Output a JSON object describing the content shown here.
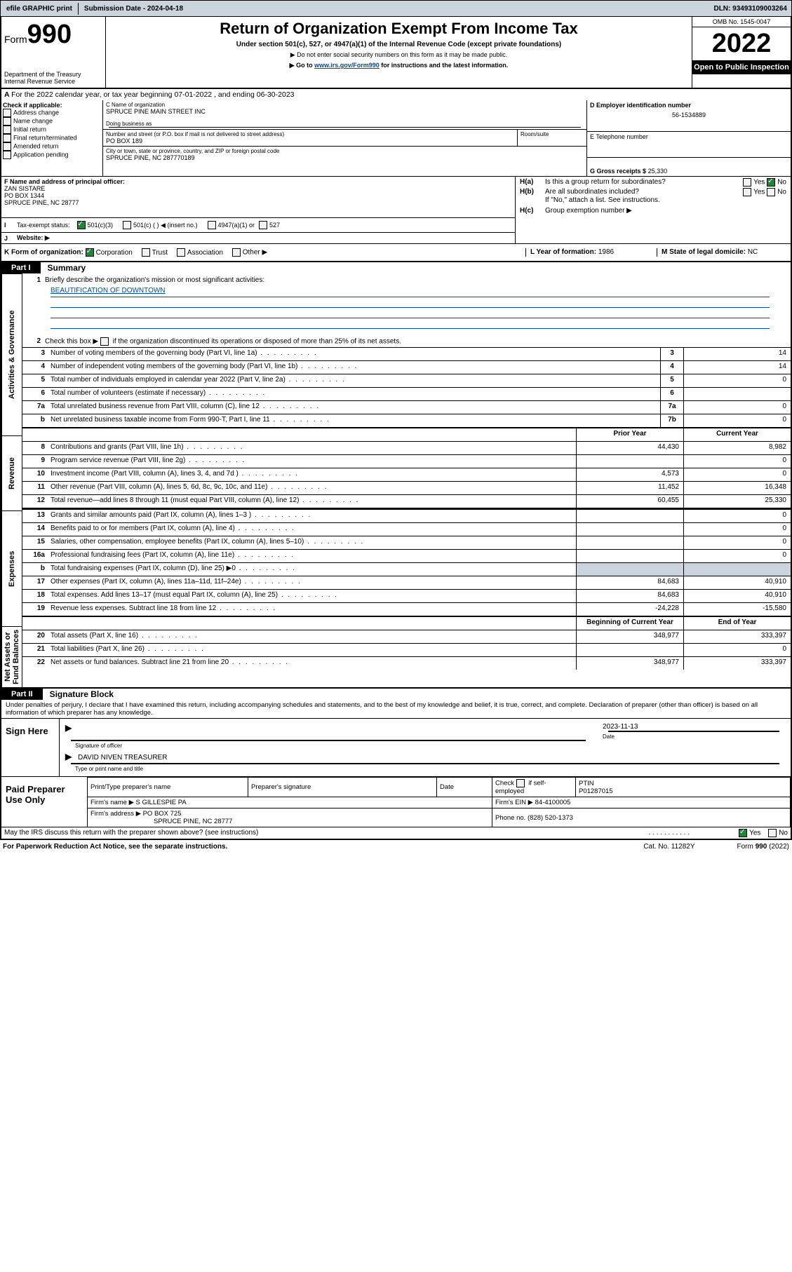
{
  "topbar": {
    "efile": "efile GRAPHIC print",
    "submission_label": "Submission Date - 2024-04-18",
    "dln": "DLN: 93493109003264"
  },
  "header": {
    "form": "Form",
    "form_num": "990",
    "dept": "Department of the Treasury",
    "irs": "Internal Revenue Service",
    "title": "Return of Organization Exempt From Income Tax",
    "subtitle": "Under section 501(c), 527, or 4947(a)(1) of the Internal Revenue Code (except private foundations)",
    "note1": "▶ Do not enter social security numbers on this form as it may be made public.",
    "note2_pre": "▶ Go to ",
    "note2_link": "www.irs.gov/Form990",
    "note2_post": " for instructions and the latest information.",
    "omb": "OMB No. 1545-0047",
    "year": "2022",
    "open": "Open to Public Inspection"
  },
  "A": {
    "line": "For the 2022 calendar year, or tax year beginning 07-01-2022   , and ending 06-30-2023"
  },
  "B": {
    "title": "Check if applicable:",
    "opts": [
      "Address change",
      "Name change",
      "Initial return",
      "Final return/terminated",
      "Amended return",
      "Application pending"
    ]
  },
  "C": {
    "name_label": "C Name of organization",
    "name": "SPRUCE PINE MAIN STREET INC",
    "dba_label": "Doing business as",
    "addr_label": "Number and street (or P.O. box if mail is not delivered to street address)",
    "room_label": "Room/suite",
    "addr": "PO BOX 189",
    "city_label": "City or town, state or province, country, and ZIP or foreign postal code",
    "city": "SPRUCE PINE, NC  287770189"
  },
  "D": {
    "label": "D Employer identification number",
    "value": "56-1534889"
  },
  "E": {
    "label": "E Telephone number"
  },
  "G": {
    "label": "G Gross receipts $",
    "value": "25,330"
  },
  "F": {
    "label": "F  Name and address of principal officer:",
    "name": "ZAN SISTARE",
    "addr1": "PO BOX 1344",
    "addr2": "SPRUCE PINE, NC  28777"
  },
  "H": {
    "a": "Is this a group return for subordinates?",
    "b": "Are all subordinates included?",
    "b_note": "If \"No,\" attach a list. See instructions.",
    "c": "Group exemption number ▶"
  },
  "I": {
    "label": "Tax-exempt status:",
    "o1": "501(c)(3)",
    "o2": "501(c) (  ) ◀ (insert no.)",
    "o3": "4947(a)(1) or",
    "o4": "527"
  },
  "J": {
    "label": "Website: ▶"
  },
  "K": {
    "label": "K Form of organization:",
    "opts": [
      "Corporation",
      "Trust",
      "Association",
      "Other ▶"
    ]
  },
  "L": {
    "label": "L Year of formation:",
    "value": "1986"
  },
  "M": {
    "label": "M State of legal domicile:",
    "value": "NC"
  },
  "partI": {
    "tab": "Part I",
    "title": "Summary",
    "q1_label": "Briefly describe the organization's mission or most significant activities:",
    "q1_val": "BEAUTIFICATION OF DOWNTOWN",
    "q2": "Check this box ▶      if the organization discontinued its operations or disposed of more than 25% of its net assets.",
    "rows_gov": [
      {
        "n": "3",
        "t": "Number of voting members of the governing body (Part VI, line 1a)",
        "box": "3",
        "v": "14"
      },
      {
        "n": "4",
        "t": "Number of independent voting members of the governing body (Part VI, line 1b)",
        "box": "4",
        "v": "14"
      },
      {
        "n": "5",
        "t": "Total number of individuals employed in calendar year 2022 (Part V, line 2a)",
        "box": "5",
        "v": "0"
      },
      {
        "n": "6",
        "t": "Total number of volunteers (estimate if necessary)",
        "box": "6",
        "v": ""
      },
      {
        "n": "7a",
        "t": "Total unrelated business revenue from Part VIII, column (C), line 12",
        "box": "7a",
        "v": "0"
      },
      {
        "n": "b",
        "t": "Net unrelated business taxable income from Form 990-T, Part I, line 11",
        "box": "7b",
        "v": "0"
      }
    ],
    "col_prior": "Prior Year",
    "col_current": "Current Year",
    "rows_rev": [
      {
        "n": "8",
        "t": "Contributions and grants (Part VIII, line 1h)",
        "p": "44,430",
        "c": "8,982"
      },
      {
        "n": "9",
        "t": "Program service revenue (Part VIII, line 2g)",
        "p": "",
        "c": "0"
      },
      {
        "n": "10",
        "t": "Investment income (Part VIII, column (A), lines 3, 4, and 7d )",
        "p": "4,573",
        "c": "0"
      },
      {
        "n": "11",
        "t": "Other revenue (Part VIII, column (A), lines 5, 6d, 8c, 9c, 10c, and 11e)",
        "p": "11,452",
        "c": "16,348"
      },
      {
        "n": "12",
        "t": "Total revenue—add lines 8 through 11 (must equal Part VIII, column (A), line 12)",
        "p": "60,455",
        "c": "25,330"
      }
    ],
    "rows_exp": [
      {
        "n": "13",
        "t": "Grants and similar amounts paid (Part IX, column (A), lines 1–3 )",
        "p": "",
        "c": "0"
      },
      {
        "n": "14",
        "t": "Benefits paid to or for members (Part IX, column (A), line 4)",
        "p": "",
        "c": "0"
      },
      {
        "n": "15",
        "t": "Salaries, other compensation, employee benefits (Part IX, column (A), lines 5–10)",
        "p": "",
        "c": "0"
      },
      {
        "n": "16a",
        "t": "Professional fundraising fees (Part IX, column (A), line 11e)",
        "p": "",
        "c": "0"
      },
      {
        "n": "b",
        "t": "Total fundraising expenses (Part IX, column (D), line 25) ▶0",
        "p": "SHADE",
        "c": "SHADE"
      },
      {
        "n": "17",
        "t": "Other expenses (Part IX, column (A), lines 11a–11d, 11f–24e)",
        "p": "84,683",
        "c": "40,910"
      },
      {
        "n": "18",
        "t": "Total expenses. Add lines 13–17 (must equal Part IX, column (A), line 25)",
        "p": "84,683",
        "c": "40,910"
      },
      {
        "n": "19",
        "t": "Revenue less expenses. Subtract line 18 from line 12",
        "p": "-24,228",
        "c": "-15,580"
      }
    ],
    "col_begin": "Beginning of Current Year",
    "col_end": "End of Year",
    "rows_net": [
      {
        "n": "20",
        "t": "Total assets (Part X, line 16)",
        "p": "348,977",
        "c": "333,397"
      },
      {
        "n": "21",
        "t": "Total liabilities (Part X, line 26)",
        "p": "",
        "c": "0"
      },
      {
        "n": "22",
        "t": "Net assets or fund balances. Subtract line 21 from line 20",
        "p": "348,977",
        "c": "333,397"
      }
    ],
    "side_gov": "Activities & Governance",
    "side_rev": "Revenue",
    "side_exp": "Expenses",
    "side_net": "Net Assets or Fund Balances"
  },
  "partII": {
    "tab": "Part II",
    "title": "Signature Block",
    "declaration": "Under penalties of perjury, I declare that I have examined this return, including accompanying schedules and statements, and to the best of my knowledge and belief, it is true, correct, and complete. Declaration of preparer (other than officer) is based on all information of which preparer has any knowledge.",
    "sign_here": "Sign Here",
    "sig_officer": "Signature of officer",
    "date_label": "Date",
    "date": "2023-11-13",
    "officer_name": "DAVID NIVEN  TREASURER",
    "name_title": "Type or print name and title",
    "paid": "Paid Preparer Use Only",
    "prep_name_h": "Print/Type preparer's name",
    "prep_sig_h": "Preparer's signature",
    "date_h": "Date",
    "check_if": "Check        if self-employed",
    "ptin_h": "PTIN",
    "ptin": "P01287015",
    "firm_name_l": "Firm's name    ▶",
    "firm_name": "S GILLESPIE PA",
    "firm_ein_l": "Firm's EIN ▶",
    "firm_ein": "84-4100005",
    "firm_addr_l": "Firm's address ▶",
    "firm_addr": "PO BOX 725",
    "firm_city": "SPRUCE PINE, NC  28777",
    "phone_l": "Phone no.",
    "phone": "(828) 520-1373",
    "may_irs": "May the IRS discuss this return with the preparer shown above? (see instructions)",
    "yes": "Yes",
    "no": "No"
  },
  "footer": {
    "paperwork": "For Paperwork Reduction Act Notice, see the separate instructions.",
    "cat": "Cat. No. 11282Y",
    "form": "Form 990 (2022)"
  }
}
